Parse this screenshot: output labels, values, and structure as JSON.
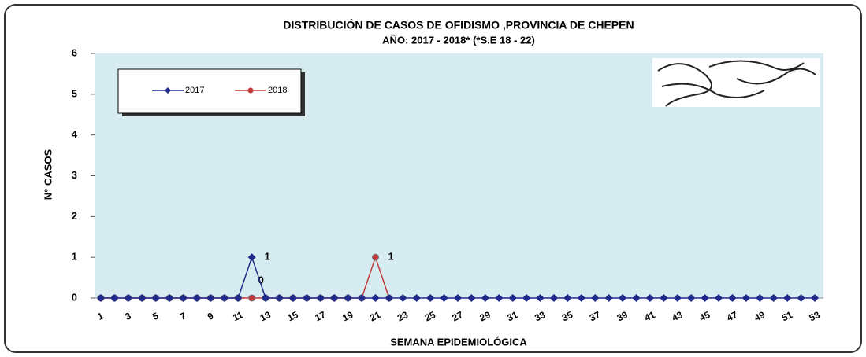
{
  "chart_data": {
    "type": "line",
    "title": "DISTRIBUCIÓN DE CASOS DE OFIDISMO ,PROVINCIA DE CHEPEN",
    "subtitle": "AÑO: 2017 - 2018* (*S.E 18 - 22)",
    "x_label": "SEMANA  EPIDEMIOLÓGICA",
    "y_label": "N° CASOS",
    "categories": [
      "1",
      null,
      "3",
      null,
      "5",
      null,
      "7",
      null,
      "9",
      null,
      "11",
      null,
      "13",
      null,
      "15",
      null,
      "17",
      null,
      "19",
      null,
      "21",
      null,
      "23",
      null,
      "25",
      null,
      "27",
      null,
      "29",
      null,
      "31",
      null,
      "33",
      null,
      "35",
      null,
      "37",
      null,
      "39",
      null,
      "41",
      null,
      "43",
      null,
      "45",
      null,
      "47",
      null,
      "49",
      null,
      "51",
      null,
      "53"
    ],
    "ylim": [
      0,
      6
    ],
    "yticks": [
      0,
      1,
      2,
      3,
      4,
      5,
      6
    ],
    "legend": "top-left",
    "series": [
      {
        "name": "2017",
        "color": "#1f2a8c",
        "marker": "diamond",
        "labeled": [
          11
        ],
        "values": [
          0,
          0,
          0,
          0,
          0,
          0,
          0,
          0,
          0,
          0,
          0,
          1,
          0,
          0,
          0,
          0,
          0,
          0,
          0,
          0,
          0,
          0,
          0,
          0,
          0,
          0,
          0,
          0,
          0,
          0,
          0,
          0,
          0,
          0,
          0,
          0,
          0,
          0,
          0,
          0,
          0,
          0,
          0,
          0,
          0,
          0,
          0,
          0,
          0,
          0,
          0,
          0,
          0
        ]
      },
      {
        "name": "2018",
        "color": "#c0393b",
        "marker": "circle",
        "labeled": [
          11,
          20
        ],
        "values": [
          0,
          0,
          0,
          0,
          0,
          0,
          0,
          0,
          0,
          0,
          0,
          0,
          0,
          0,
          0,
          0,
          0,
          0,
          0,
          0,
          1,
          0,
          null,
          null,
          null,
          null,
          null,
          null,
          null,
          null,
          null,
          null,
          null,
          null,
          null,
          null,
          null,
          null,
          null,
          null,
          null,
          null,
          null,
          null,
          null,
          null,
          null,
          null,
          null,
          null,
          null,
          null,
          null
        ]
      }
    ]
  }
}
